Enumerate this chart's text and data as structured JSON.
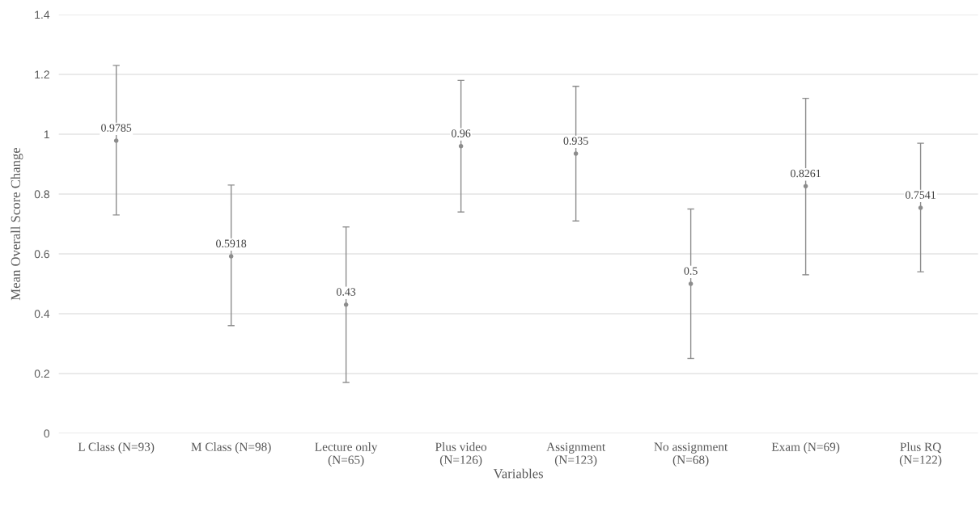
{
  "chart_data": {
    "type": "scatter",
    "xlabel": "Variables",
    "ylabel": "Mean Overall Score Change",
    "categories": [
      "L Class (N=93)",
      "M Class (N=98)",
      "Lecture only\n(N=65)",
      "Plus video\n(N=126)",
      "Assignment\n(N=123)",
      "No assignment\n(N=68)",
      "Exam (N=69)",
      "Plus RQ\n(N=122)"
    ],
    "values": [
      0.9785,
      0.5918,
      0.43,
      0.96,
      0.935,
      0.5,
      0.8261,
      0.7541
    ],
    "errors": [
      [
        0.73,
        1.23
      ],
      [
        0.36,
        0.83
      ],
      [
        0.17,
        0.69
      ],
      [
        0.74,
        1.18
      ],
      [
        0.71,
        1.16
      ],
      [
        0.25,
        0.75
      ],
      [
        0.53,
        1.12
      ],
      [
        0.54,
        0.97
      ]
    ],
    "color": "#8c8c8c",
    "marker": "circle",
    "data_labels": true,
    "ylim": [
      0,
      1.4
    ],
    "yticks": [
      0,
      0.2,
      0.4,
      0.6,
      0.8,
      1,
      1.2,
      1.4
    ],
    "grid": "y"
  }
}
